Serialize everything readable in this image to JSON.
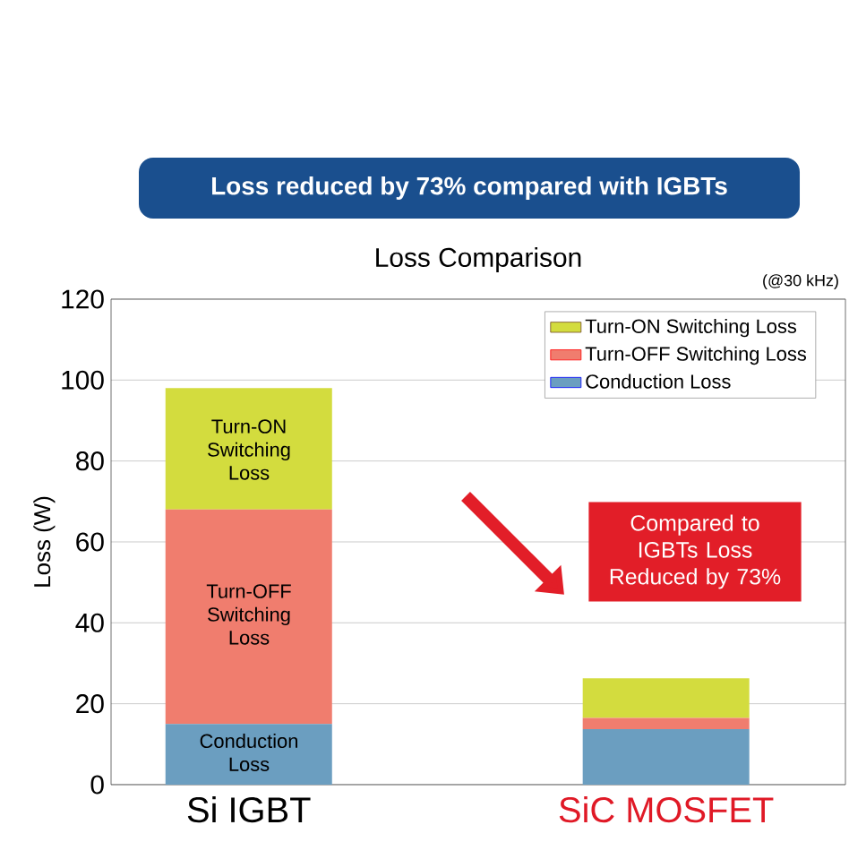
{
  "chart_data": {
    "type": "bar",
    "stacked": true,
    "title": "Loss Comparison",
    "subtitle": "Loss reduced by 73% compared with IGBTs",
    "ylabel": "Loss (W)",
    "categories": [
      "Si IGBT",
      "SiC MOSFET"
    ],
    "series": [
      {
        "name": "Conduction Loss",
        "color": "#6b9ec0",
        "values": [
          15,
          13.7
        ]
      },
      {
        "name": "Turn-OFF Switching Loss",
        "color": "#f07d6e",
        "values": [
          53,
          2.8
        ]
      },
      {
        "name": "Turn-ON Switching Loss",
        "color": "#d3dc3e",
        "values": [
          30,
          9.8
        ]
      }
    ],
    "ylim": [
      0,
      120
    ],
    "yticks": [
      0,
      20,
      40,
      60,
      80,
      100,
      120
    ],
    "grid": "y",
    "legend": "top right",
    "annotations": [
      "(@30 kHz)",
      "Compared to IGBTs Loss Reduced by 73%",
      "Turn-ON Switching Loss",
      "Turn-OFF Switching Loss",
      "Conduction Loss"
    ]
  }
}
